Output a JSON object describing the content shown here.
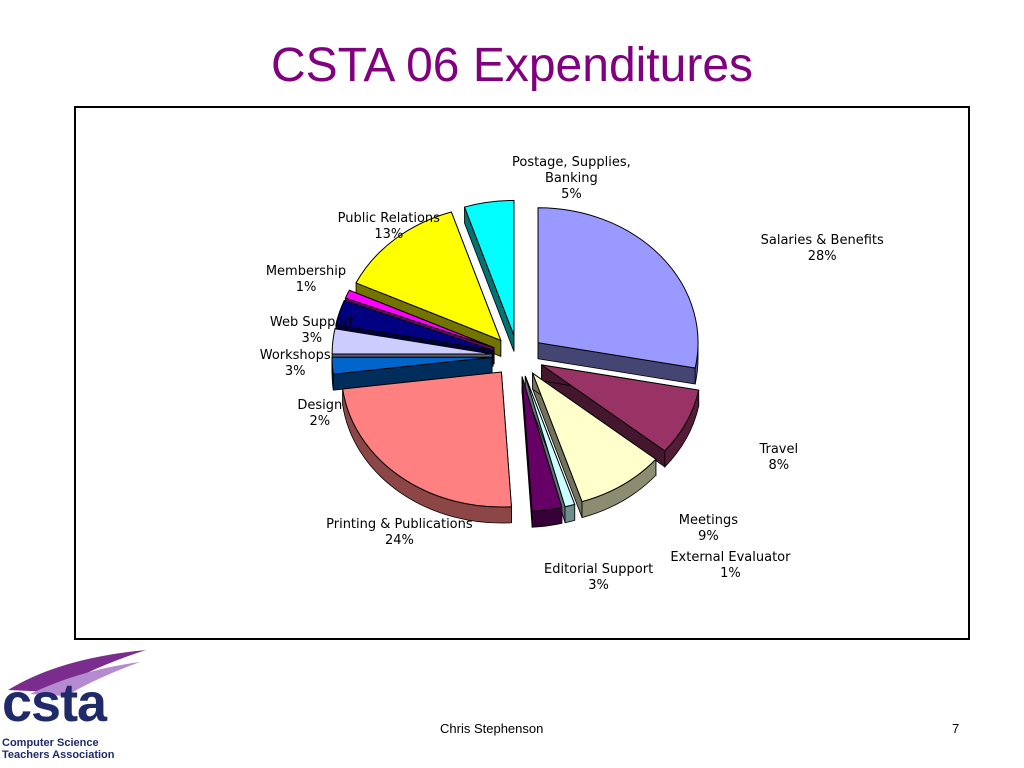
{
  "slide": {
    "title": "CSTA 06 Expenditures",
    "author": "Chris Stephenson",
    "page_number": "7"
  },
  "logo": {
    "word": "csta",
    "line1": "Computer Science",
    "line2": "Teachers Association",
    "colors": {
      "swoosh": "#7b2d8e",
      "swoosh_light": "#b48ad0",
      "text": "#1f2a6b"
    }
  },
  "chart_data": {
    "type": "pie",
    "title": "",
    "exploded": true,
    "three_d": true,
    "slices": [
      {
        "name": "Salaries & Benefits",
        "percent_label": "28%",
        "value": 28,
        "color": "#9999ff"
      },
      {
        "name": "Travel",
        "percent_label": "8%",
        "value": 8,
        "color": "#993366"
      },
      {
        "name": "Meetings",
        "percent_label": "9%",
        "value": 9,
        "color": "#ffffcc"
      },
      {
        "name": "External Evaluator",
        "percent_label": "1%",
        "value": 1,
        "color": "#ccffff"
      },
      {
        "name": "Editorial Support",
        "percent_label": "3%",
        "value": 3,
        "color": "#660066"
      },
      {
        "name": "Printing & Publications",
        "percent_label": "24%",
        "value": 24,
        "color": "#ff8080"
      },
      {
        "name": "Design",
        "percent_label": "2%",
        "value": 2,
        "color": "#0066cc"
      },
      {
        "name": "Workshops",
        "percent_label": "3%",
        "value": 3,
        "color": "#ccccff"
      },
      {
        "name": "Web Support",
        "percent_label": "3%",
        "value": 3,
        "color": "#000080"
      },
      {
        "name": "Membership",
        "percent_label": "1%",
        "value": 1,
        "color": "#ff00ff"
      },
      {
        "name": "Public Relations",
        "percent_label": "13%",
        "value": 13,
        "color": "#ffff00"
      },
      {
        "name": "Postage, Supplies, Banking",
        "percent_label": "5%",
        "value": 5,
        "color": "#00ffff"
      }
    ]
  }
}
